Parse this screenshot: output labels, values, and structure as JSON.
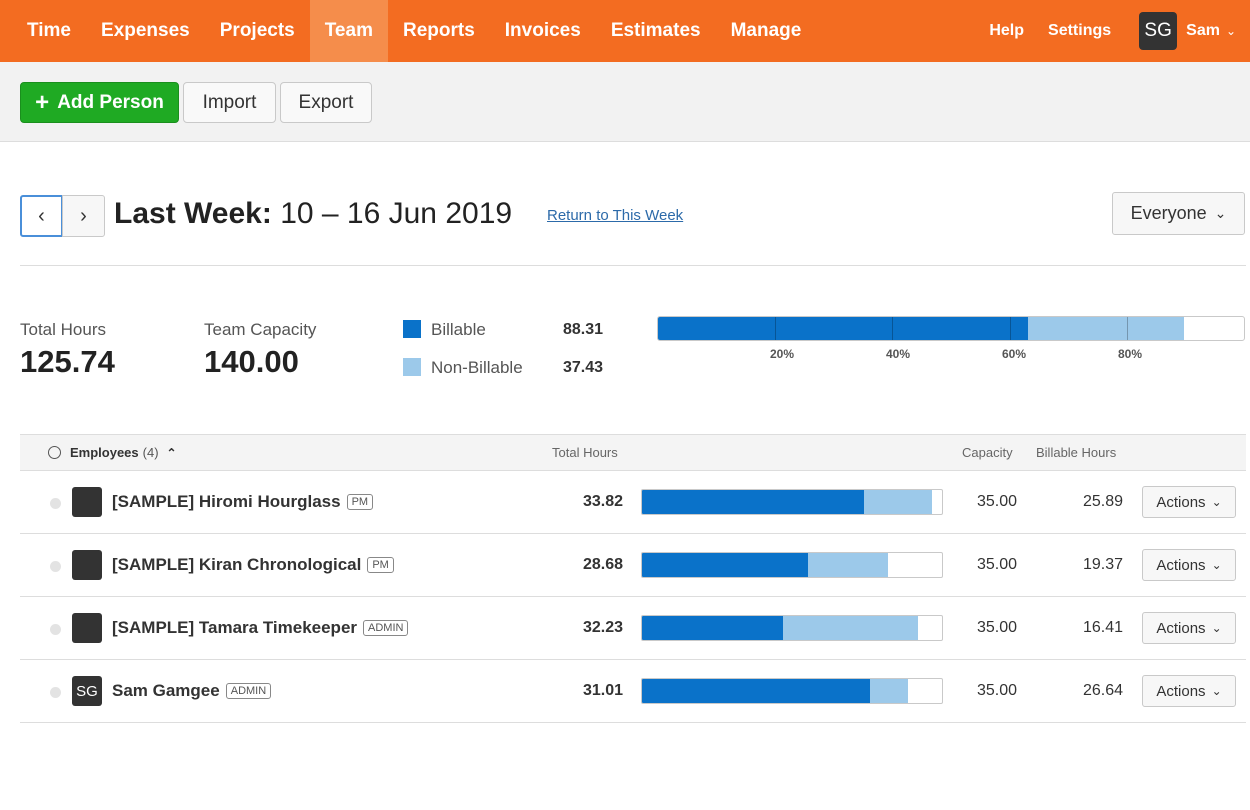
{
  "nav": {
    "items": [
      "Time",
      "Expenses",
      "Projects",
      "Team",
      "Reports",
      "Invoices",
      "Estimates",
      "Manage"
    ],
    "active": "Team",
    "help": "Help",
    "settings": "Settings",
    "user_initials": "SG",
    "user_name": "Sam"
  },
  "toolbar": {
    "add_person": "Add Person",
    "import": "Import",
    "export": "Export"
  },
  "week": {
    "prefix": "Last Week:",
    "range": "10 – 16 Jun 2019",
    "return_link": "Return to This Week",
    "filter": "Everyone"
  },
  "summary": {
    "total_hours_label": "Total Hours",
    "total_hours": "125.74",
    "capacity_label": "Team Capacity",
    "capacity": "140.00",
    "billable_label": "Billable",
    "billable": "88.31",
    "nonbillable_label": "Non-Billable",
    "nonbillable": "37.43",
    "billable_fraction": 0.6308,
    "nonbillable_fraction": 0.2674,
    "ticks": [
      "20%",
      "40%",
      "60%",
      "80%"
    ]
  },
  "colors": {
    "brand": "#f36c21",
    "billable": "#0a72c9",
    "nonbillable": "#9cc9ea",
    "add_button": "#1faa23"
  },
  "table": {
    "employees_label": "Employees",
    "employees_count": "(4)",
    "col_total": "Total Hours",
    "col_capacity": "Capacity",
    "col_billable": "Billable Hours",
    "actions_label": "Actions",
    "rows": [
      {
        "name": "[SAMPLE] Hiromi Hourglass",
        "role": "PM",
        "avatar": "",
        "total": "33.82",
        "capacity": "35.00",
        "billable": "25.89",
        "billable_fraction": 0.7397,
        "nonbillable_fraction": 0.2266
      },
      {
        "name": "[SAMPLE] Kiran Chronological",
        "role": "PM",
        "avatar": "",
        "total": "28.68",
        "capacity": "35.00",
        "billable": "19.37",
        "billable_fraction": 0.5534,
        "nonbillable_fraction": 0.266
      },
      {
        "name": "[SAMPLE] Tamara Timekeeper",
        "role": "ADMIN",
        "avatar": "",
        "total": "32.23",
        "capacity": "35.00",
        "billable": "16.41",
        "billable_fraction": 0.4689,
        "nonbillable_fraction": 0.452
      },
      {
        "name": "Sam Gamgee",
        "role": "ADMIN",
        "avatar": "SG",
        "total": "31.01",
        "capacity": "35.00",
        "billable": "26.64",
        "billable_fraction": 0.7611,
        "nonbillable_fraction": 0.1249
      }
    ]
  }
}
